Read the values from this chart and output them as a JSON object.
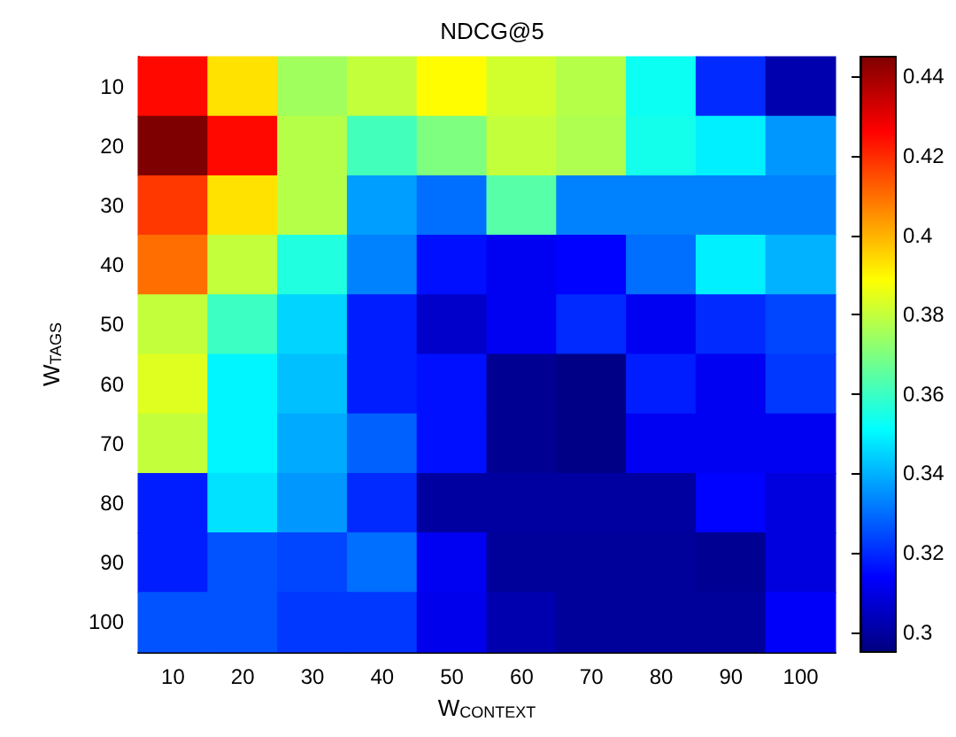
{
  "chart_data": {
    "type": "heatmap",
    "title": "NDCG@5",
    "xlabel": "W$_{CONTEXT}$",
    "ylabel": "W$_{TAGS}$",
    "categories": [
      "10",
      "20",
      "30",
      "40",
      "50",
      "60",
      "70",
      "80",
      "90",
      "100"
    ],
    "y_categories": [
      "10",
      "20",
      "30",
      "40",
      "50",
      "60",
      "70",
      "80",
      "90",
      "100"
    ],
    "cells": [
      [
        0.425,
        0.393,
        0.375,
        0.38,
        0.389,
        0.382,
        0.378,
        0.353,
        0.32,
        0.302
      ],
      [
        0.445,
        0.425,
        0.378,
        0.361,
        0.37,
        0.38,
        0.377,
        0.354,
        0.349,
        0.336
      ],
      [
        0.418,
        0.393,
        0.378,
        0.337,
        0.33,
        0.364,
        0.333,
        0.333,
        0.333,
        0.333
      ],
      [
        0.41,
        0.38,
        0.356,
        0.333,
        0.316,
        0.312,
        0.314,
        0.33,
        0.349,
        0.34
      ],
      [
        0.38,
        0.36,
        0.345,
        0.318,
        0.306,
        0.312,
        0.32,
        0.312,
        0.32,
        0.324
      ],
      [
        0.384,
        0.35,
        0.342,
        0.318,
        0.316,
        0.298,
        0.296,
        0.318,
        0.312,
        0.322
      ],
      [
        0.38,
        0.35,
        0.339,
        0.328,
        0.316,
        0.298,
        0.296,
        0.312,
        0.312,
        0.312
      ],
      [
        0.318,
        0.347,
        0.336,
        0.32,
        0.3,
        0.3,
        0.3,
        0.3,
        0.314,
        0.309
      ],
      [
        0.318,
        0.326,
        0.324,
        0.33,
        0.312,
        0.299,
        0.299,
        0.299,
        0.298,
        0.309
      ],
      [
        0.326,
        0.326,
        0.322,
        0.322,
        0.311,
        0.302,
        0.299,
        0.299,
        0.299,
        0.313
      ]
    ],
    "clim": [
      0.295,
      0.445
    ],
    "cticks": [
      0.3,
      0.32,
      0.34,
      0.36,
      0.38,
      0.4,
      0.42,
      0.44
    ]
  }
}
